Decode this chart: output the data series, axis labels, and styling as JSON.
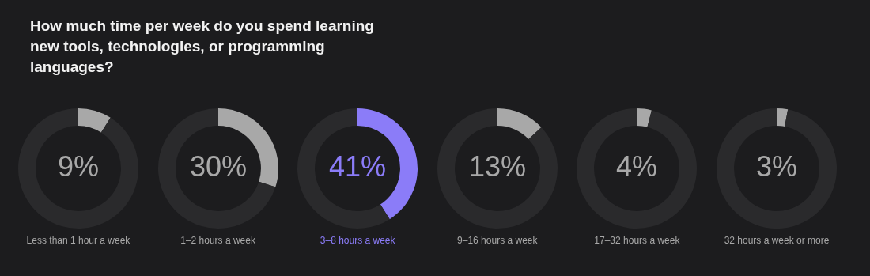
{
  "chart_data": [
    {
      "type": "donut",
      "title": "How much time per week do you spend learning new tools, technologies, or programming languages?",
      "xlabel": "Less than 1 hour a week",
      "categories": [
        null,
        null
      ],
      "values": [
        9,
        91
      ],
      "colors": [
        "#a8a8a8",
        "#2a2a2c"
      ],
      "value_labels": [
        "9%",
        null
      ]
    },
    {
      "type": "donut",
      "xlabel": "1–2 hours a week",
      "categories": [
        null,
        null
      ],
      "values": [
        30,
        70
      ],
      "colors": [
        "#a8a8a8",
        "#2a2a2c"
      ],
      "value_labels": [
        "30%",
        null
      ]
    },
    {
      "type": "donut",
      "xlabel": "3–8 hours a week",
      "categories": [
        null,
        null
      ],
      "values": [
        41,
        59
      ],
      "colors": [
        "#8b7cf8",
        "#2a2a2c"
      ],
      "value_labels": [
        "41%",
        null
      ]
    },
    {
      "type": "donut",
      "xlabel": "9–16 hours a week",
      "categories": [
        null,
        null
      ],
      "values": [
        13,
        87
      ],
      "colors": [
        "#a8a8a8",
        "#2a2a2c"
      ],
      "value_labels": [
        "13%",
        null
      ]
    },
    {
      "type": "donut",
      "xlabel": "17–32 hours a week",
      "categories": [
        null,
        null
      ],
      "values": [
        4,
        96
      ],
      "colors": [
        "#a8a8a8",
        "#2a2a2c"
      ],
      "value_labels": [
        "4%",
        null
      ]
    },
    {
      "type": "donut",
      "xlabel": "32 hours a week or more",
      "categories": [
        null,
        null
      ],
      "values": [
        3,
        97
      ],
      "colors": [
        "#a8a8a8",
        "#2a2a2c"
      ],
      "value_labels": [
        "3%",
        null
      ]
    }
  ]
}
